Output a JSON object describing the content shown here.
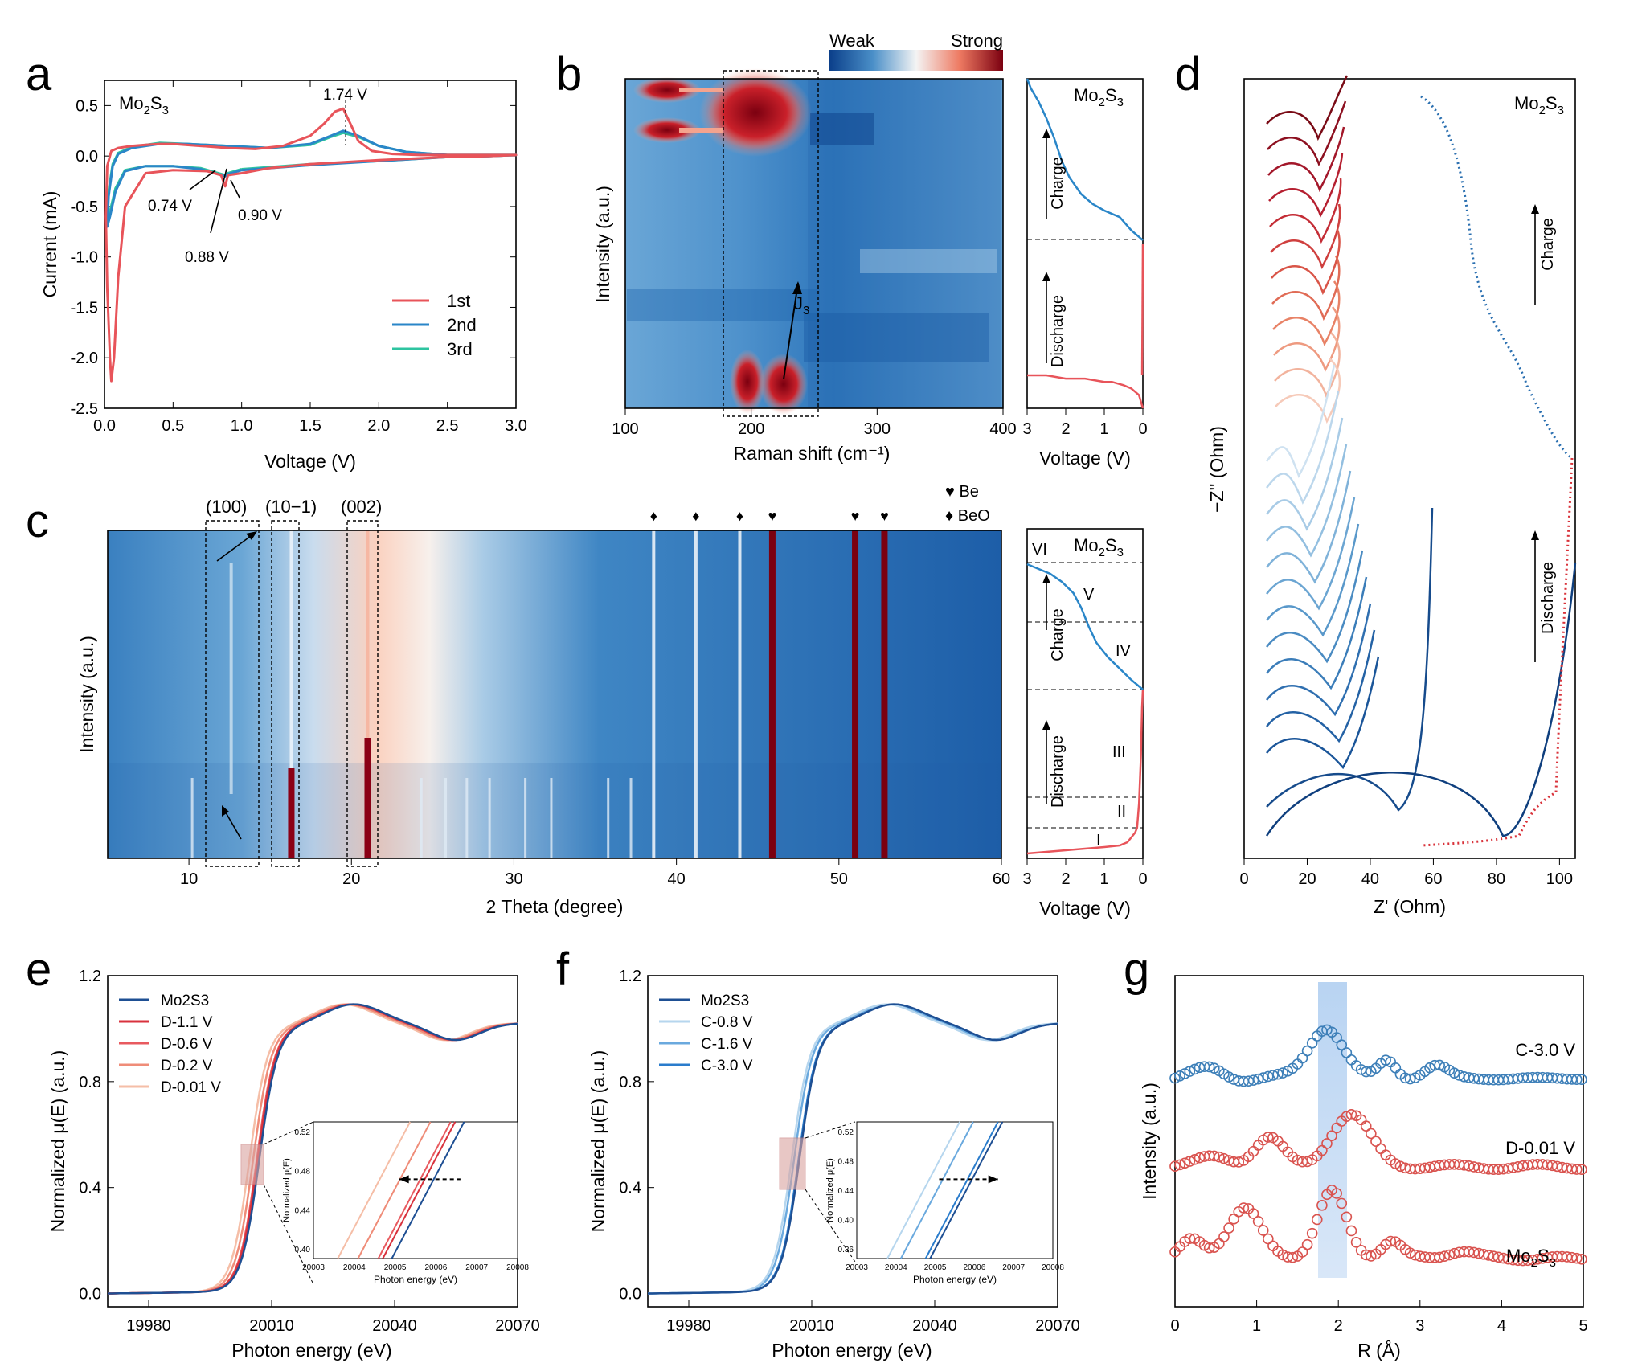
{
  "chart_data": [
    {
      "panel": "a",
      "type": "line",
      "label": "Mo₂S₃",
      "xlabel": "Voltage (V)",
      "ylabel": "Current (mA)",
      "xlim": [
        0,
        3.0
      ],
      "ylim": [
        -2.5,
        0.75
      ],
      "xticks": [
        "0.0",
        "0.5",
        "1.0",
        "1.5",
        "2.0",
        "2.5",
        "3.0"
      ],
      "yticks": [
        "0.5",
        "0.0",
        "-0.5",
        "-1.0",
        "-1.5",
        "-2.0",
        "-2.5"
      ],
      "annotations": [
        "1.74 V",
        "0.74 V",
        "0.88 V",
        "0.90 V"
      ],
      "legend_position": "bottom-right",
      "series": [
        {
          "name": "1st",
          "color": "#e8545a",
          "x": [
            1.0,
            0.9,
            0.88,
            0.85,
            0.75,
            0.5,
            0.3,
            0.15,
            0.1,
            0.07,
            0.05,
            0.04,
            0.02,
            0.01,
            0.02,
            0.05,
            0.1,
            0.2,
            0.3,
            0.4,
            0.5,
            0.7,
            0.9,
            1.1,
            1.3,
            1.5,
            1.6,
            1.68,
            1.74,
            1.8,
            1.85,
            1.95,
            2.1,
            2.3,
            2.5,
            2.7,
            2.9,
            3.0,
            2.8,
            2.5,
            2.0,
            1.5,
            1.2,
            1.0
          ],
          "y": [
            -0.17,
            -0.19,
            -0.3,
            -0.19,
            -0.15,
            -0.14,
            -0.17,
            -0.5,
            -1.2,
            -2.0,
            -2.23,
            -2.0,
            -1.3,
            -0.6,
            -0.1,
            0.05,
            0.08,
            0.1,
            0.11,
            0.12,
            0.12,
            0.1,
            0.08,
            0.07,
            0.1,
            0.2,
            0.32,
            0.44,
            0.47,
            0.3,
            0.15,
            0.05,
            0.02,
            0.01,
            0.01,
            0.01,
            0.01,
            0.01,
            0.0,
            -0.01,
            -0.04,
            -0.08,
            -0.12,
            -0.17
          ]
        },
        {
          "name": "2nd",
          "color": "#2a86c8",
          "x": [
            1.0,
            0.9,
            0.88,
            0.7,
            0.5,
            0.3,
            0.15,
            0.08,
            0.04,
            0.02,
            0.03,
            0.06,
            0.1,
            0.2,
            0.4,
            0.6,
            0.9,
            1.2,
            1.5,
            1.65,
            1.74,
            1.85,
            2.0,
            2.2,
            2.5,
            2.8,
            3.0,
            2.8,
            2.5,
            2.0,
            1.5,
            1.2,
            1.0
          ],
          "y": [
            -0.14,
            -0.18,
            -0.2,
            -0.13,
            -0.1,
            -0.1,
            -0.15,
            -0.35,
            -0.6,
            -0.7,
            -0.4,
            -0.1,
            0.02,
            0.08,
            0.12,
            0.12,
            0.1,
            0.08,
            0.12,
            0.2,
            0.25,
            0.2,
            0.1,
            0.04,
            0.01,
            0.01,
            0.01,
            0.0,
            -0.01,
            -0.05,
            -0.09,
            -0.12,
            -0.14
          ]
        },
        {
          "name": "3rd",
          "color": "#2ec4a0",
          "x": [
            1.0,
            0.9,
            0.88,
            0.7,
            0.5,
            0.3,
            0.15,
            0.08,
            0.04,
            0.02,
            0.03,
            0.06,
            0.1,
            0.2,
            0.4,
            0.6,
            0.9,
            1.2,
            1.5,
            1.65,
            1.74,
            1.85,
            2.0,
            2.2,
            2.5,
            2.8,
            3.0,
            2.8,
            2.5,
            2.0,
            1.5,
            1.2,
            1.0
          ],
          "y": [
            -0.13,
            -0.17,
            -0.19,
            -0.12,
            -0.1,
            -0.1,
            -0.14,
            -0.32,
            -0.55,
            -0.65,
            -0.35,
            -0.08,
            0.03,
            0.09,
            0.13,
            0.12,
            0.1,
            0.08,
            0.11,
            0.19,
            0.23,
            0.19,
            0.1,
            0.04,
            0.01,
            0.01,
            0.01,
            0.0,
            -0.01,
            -0.05,
            -0.08,
            -0.11,
            -0.13
          ]
        }
      ]
    },
    {
      "panel": "b",
      "type": "heatmap",
      "label": "Mo₂S₃",
      "colorbar": [
        "Weak",
        "Strong"
      ],
      "xlabel": "Raman shift (cm⁻¹)",
      "ylabel": "Intensity (a.u.)",
      "xlim": [
        100,
        400
      ],
      "xticks": [
        "100",
        "200",
        "300",
        "400"
      ],
      "annotation": "J₃",
      "side": {
        "xlabel": "Voltage (V)",
        "xticks": [
          "3",
          "2",
          "1",
          "0"
        ],
        "labels": [
          "Charge",
          "Discharge"
        ],
        "discharge_curve": {
          "v": [
            0.0,
            0.05,
            0.1,
            0.3,
            0.5,
            0.8,
            1.0,
            1.5,
            2.0,
            2.5,
            3.0
          ],
          "f": [
            0.0,
            0.02,
            0.04,
            0.06,
            0.07,
            0.08,
            0.08,
            0.09,
            0.09,
            0.1,
            0.1
          ]
        },
        "charge_curve": {
          "v": [
            0.0,
            0.3,
            0.6,
            1.0,
            1.3,
            1.6,
            1.9,
            2.1,
            2.3,
            2.5,
            2.7,
            2.9,
            3.0
          ],
          "f": [
            0.51,
            0.54,
            0.58,
            0.6,
            0.62,
            0.65,
            0.7,
            0.75,
            0.82,
            0.88,
            0.93,
            0.97,
            1.0
          ]
        }
      }
    },
    {
      "panel": "c",
      "type": "heatmap",
      "label": "Mo₂S₃",
      "xlabel": "2 Theta (degree)",
      "ylabel": "Intensity (a.u.)",
      "xlim": [
        5,
        60
      ],
      "xticks": [
        "10",
        "20",
        "30",
        "40",
        "50",
        "60"
      ],
      "peak_labels": [
        "(100)",
        "(10−1)",
        "(002)"
      ],
      "legend": [
        {
          "symbol": "♥",
          "name": "Be"
        },
        {
          "symbol": "♦",
          "name": "BeO"
        }
      ],
      "be_peaks": [
        45.9,
        51.0,
        52.8
      ],
      "beo_peaks": [
        38.6,
        41.2,
        43.9
      ],
      "side": {
        "xlabel": "Voltage (V)",
        "xticks": [
          "3",
          "2",
          "1",
          "0"
        ],
        "stages": [
          "VI",
          "V",
          "IV",
          "III",
          "II",
          "I"
        ],
        "labels": [
          "Charge",
          "Discharge"
        ]
      }
    },
    {
      "panel": "d",
      "type": "line",
      "label": "Mo₂S₃",
      "xlabel": "Z' (Ohm)",
      "ylabel": "−Z'' (Ohm)",
      "xlim": [
        0,
        105
      ],
      "xticks": [
        "0",
        "20",
        "40",
        "60",
        "80",
        "100"
      ],
      "labels": [
        "Charge",
        "Discharge"
      ]
    },
    {
      "panel": "e",
      "type": "line",
      "xlabel": "Photon energy (eV)",
      "ylabel": "Normalized μ(E) (a.u.)",
      "xlim": [
        19970,
        20070
      ],
      "ylim": [
        -0.05,
        1.2
      ],
      "xticks": [
        "19980",
        "20010",
        "20040",
        "20070"
      ],
      "yticks": [
        "0.0",
        "0.4",
        "0.8",
        "1.2"
      ],
      "legend_position": "top-left",
      "series": [
        {
          "name": "Mo₂S₃",
          "color": "#1e4f93",
          "shift": 0.0
        },
        {
          "name": "D-1.1 V",
          "color": "#d8323d",
          "shift": -0.4
        },
        {
          "name": "D-0.6 V",
          "color": "#e85a5f",
          "shift": -0.6
        },
        {
          "name": "D-0.2 V",
          "color": "#ef8c78",
          "shift": -1.5
        },
        {
          "name": "D-0.01 V",
          "color": "#f5bea7",
          "shift": -2.4
        }
      ],
      "inset": {
        "xlabel": "Photon energy (eV)",
        "ylabel": "Normalized μ(E)",
        "xticks": [
          "20003",
          "20004",
          "20005",
          "20006",
          "20007",
          "20008"
        ],
        "yticks": [
          "0.40",
          "0.44",
          "0.48",
          "0.52"
        ]
      }
    },
    {
      "panel": "f",
      "type": "line",
      "xlabel": "Photon energy (eV)",
      "ylabel": "Normalized μ(E) (a.u.)",
      "xlim": [
        19970,
        20070
      ],
      "ylim": [
        -0.05,
        1.2
      ],
      "xticks": [
        "19980",
        "20010",
        "20040",
        "20070"
      ],
      "yticks": [
        "0.0",
        "0.4",
        "0.8",
        "1.2"
      ],
      "legend_position": "top-left",
      "series": [
        {
          "name": "Mo₂S₃",
          "color": "#1e4f93",
          "shift": 0.0
        },
        {
          "name": "C-0.8 V",
          "color": "#b6d6ee",
          "shift": -1.9
        },
        {
          "name": "C-1.6 V",
          "color": "#6aa9de",
          "shift": -1.3
        },
        {
          "name": "C-3.0 V",
          "color": "#2a7ccc",
          "shift": -0.2
        }
      ],
      "inset": {
        "xlabel": "Photon energy (eV)",
        "ylabel": "Normalized μ(E)",
        "xticks": [
          "20003",
          "20004",
          "20005",
          "20006",
          "20007",
          "20008"
        ],
        "yticks": [
          "0.36",
          "0.40",
          "0.44",
          "0.48",
          "0.52"
        ]
      }
    },
    {
      "panel": "g",
      "type": "scatter",
      "xlabel": "R (Å)",
      "ylabel": "Intensity (a.u.)",
      "xlim": [
        0,
        5
      ],
      "xticks": [
        "0",
        "1",
        "2",
        "3",
        "4",
        "5"
      ],
      "highlight": [
        1.75,
        2.12
      ],
      "series": [
        {
          "name": "C-3.0 V",
          "color": "#3d7fb8"
        },
        {
          "name": "D-0.01 V",
          "color": "#d9534f"
        },
        {
          "name": "Mo₂S₃",
          "color": "#d9534f"
        }
      ]
    }
  ]
}
